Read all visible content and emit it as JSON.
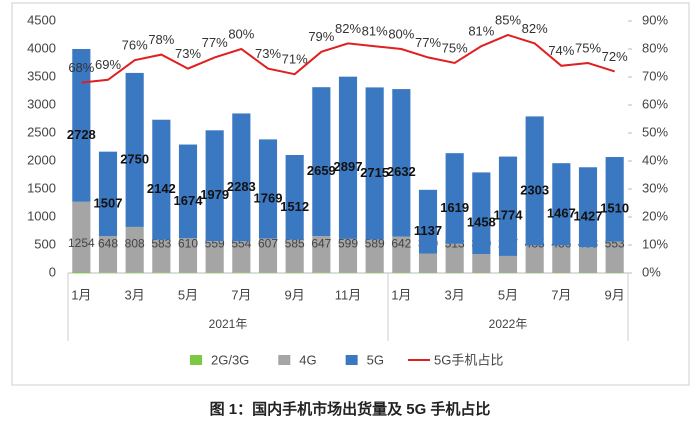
{
  "chart_data": {
    "type": "bar",
    "caption": "图 1：国内手机市场出货量及 5G 手机占比",
    "categories": [
      "1月",
      null,
      "3月",
      null,
      "5月",
      null,
      "7月",
      null,
      "9月",
      null,
      "11月",
      null,
      "1月",
      null,
      "3月",
      null,
      "5月",
      null,
      "7月",
      null,
      "9月"
    ],
    "groups": [
      {
        "label": "2021年",
        "count": 12
      },
      {
        "label": "2022年",
        "count": 9
      }
    ],
    "series": [
      {
        "name": "2G/3G",
        "color": "#7dc843",
        "values": [
          18,
          12,
          15,
          12,
          10,
          10,
          12,
          10,
          10,
          12,
          10,
          10,
          10,
          8,
          8,
          8,
          8,
          8,
          8,
          8,
          8
        ]
      },
      {
        "name": "4G",
        "color": "#a5a5a5",
        "values": [
          1254,
          648,
          808,
          583,
          610,
          559,
          554,
          607,
          585,
          647,
          599,
          589,
          642,
          340,
          513,
          330,
          297,
          485,
          486,
          453,
          553
        ]
      },
      {
        "name": "5G",
        "color": "#3a78c2",
        "values": [
          2728,
          1507,
          2750,
          2142,
          1674,
          1979,
          2283,
          1769,
          1512,
          2659,
          2897,
          2715,
          2632,
          1137,
          1619,
          1458,
          1774,
          2303,
          1467,
          1427,
          1510
        ]
      },
      {
        "name": "5G手机占比",
        "color": "#e02020",
        "type": "line",
        "axis": "y2",
        "values": [
          68,
          69,
          76,
          78,
          73,
          77,
          80,
          73,
          71,
          79,
          82,
          81,
          80,
          77,
          75,
          81,
          85,
          82,
          74,
          75,
          72
        ],
        "value_labels": [
          "68%",
          "69%",
          "76%",
          "78%",
          "73%",
          "77%",
          "80%",
          "73%",
          "71%",
          "79%",
          "82%",
          "81%",
          "80%",
          "77%",
          "75%",
          "81%",
          "85%",
          "82%",
          "74%",
          "75%",
          "72%"
        ]
      }
    ],
    "ylim": [
      0,
      4500
    ],
    "yticks": [
      0,
      500,
      1000,
      1500,
      2000,
      2500,
      3000,
      3500,
      4000,
      4500
    ],
    "y2lim": [
      0,
      90
    ],
    "y2ticks": [
      {
        "value": 0,
        "label": "0%"
      },
      {
        "value": 10,
        "label": "10%"
      },
      {
        "value": 20,
        "label": "20%"
      },
      {
        "value": 30,
        "label": "30%"
      },
      {
        "value": 40,
        "label": "40%"
      },
      {
        "value": 50,
        "label": "50%"
      },
      {
        "value": 60,
        "label": "60%"
      },
      {
        "value": 70,
        "label": "70%"
      },
      {
        "value": 80,
        "label": "80%"
      },
      {
        "value": 90,
        "label": "90%"
      }
    ],
    "legend": "bottom"
  }
}
